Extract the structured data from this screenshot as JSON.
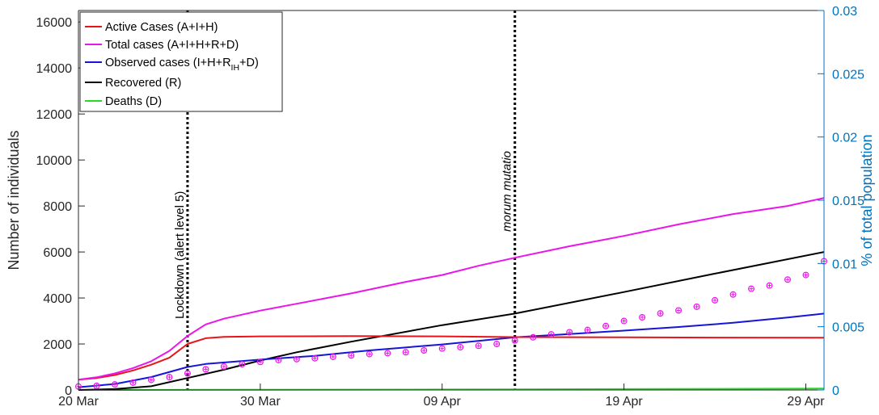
{
  "chart_data": {
    "type": "line",
    "x_ticks": [
      "20 Mar",
      "30 Mar",
      "09 Apr",
      "19 Apr",
      "29 Apr"
    ],
    "xlim": [
      "2020-03-20",
      "2020-04-30"
    ],
    "y_left": {
      "label": "Number of individuals",
      "ylim": [
        0,
        16500
      ],
      "ticks": [
        0,
        2000,
        4000,
        6000,
        8000,
        10000,
        12000,
        14000,
        16000
      ]
    },
    "y_right": {
      "label": "% of total population",
      "ylim": [
        0,
        0.03
      ],
      "ticks": [
        "0",
        "0.005",
        "0.01",
        "0.015",
        "0.02",
        "0.025",
        "0.03"
      ],
      "color": "#0072bd"
    },
    "legend": {
      "placement": "top-left",
      "entries": [
        {
          "id": "active",
          "text": "Active Cases (A+I+H)",
          "color": "#e8141c"
        },
        {
          "id": "total",
          "text": "Total cases (A+I+H+R+D)",
          "color": "#ea15ea"
        },
        {
          "id": "observed",
          "text": "Observed cases (I+H+R",
          "sub": "IH",
          "after": "+D)",
          "color": "#1515d9"
        },
        {
          "id": "recovered",
          "text": "Recovered (R)",
          "color": "#000000"
        },
        {
          "id": "deaths",
          "text": "Deaths (D)",
          "color": "#22dd22"
        }
      ]
    },
    "annotations": [
      {
        "date": "2020-03-26",
        "text": "Lockdown (alert level 5)"
      },
      {
        "date": "2020-04-13",
        "text": "morum mutatio"
      }
    ],
    "series": [
      {
        "name": "Active Cases (A+I+H)",
        "color": "#e8141c",
        "points": [
          [
            "2020-03-20",
            450
          ],
          [
            "2020-03-21",
            520
          ],
          [
            "2020-03-22",
            650
          ],
          [
            "2020-03-23",
            850
          ],
          [
            "2020-03-24",
            1100
          ],
          [
            "2020-03-25",
            1400
          ],
          [
            "2020-03-26",
            2000
          ],
          [
            "2020-03-27",
            2250
          ],
          [
            "2020-03-28",
            2310
          ],
          [
            "2020-03-30",
            2330
          ],
          [
            "2020-04-04",
            2340
          ],
          [
            "2020-04-09",
            2330
          ],
          [
            "2020-04-13",
            2300
          ],
          [
            "2020-04-19",
            2290
          ],
          [
            "2020-04-24",
            2280
          ],
          [
            "2020-04-30",
            2270
          ]
        ]
      },
      {
        "name": "Total cases (A+I+H+R+D)",
        "color": "#ea15ea",
        "points": [
          [
            "2020-03-20",
            450
          ],
          [
            "2020-03-21",
            550
          ],
          [
            "2020-03-22",
            720
          ],
          [
            "2020-03-23",
            950
          ],
          [
            "2020-03-24",
            1250
          ],
          [
            "2020-03-25",
            1700
          ],
          [
            "2020-03-26",
            2350
          ],
          [
            "2020-03-27",
            2850
          ],
          [
            "2020-03-28",
            3100
          ],
          [
            "2020-03-30",
            3450
          ],
          [
            "2020-04-01",
            3750
          ],
          [
            "2020-04-04",
            4200
          ],
          [
            "2020-04-07",
            4700
          ],
          [
            "2020-04-09",
            5000
          ],
          [
            "2020-04-11",
            5400
          ],
          [
            "2020-04-13",
            5750
          ],
          [
            "2020-04-16",
            6250
          ],
          [
            "2020-04-19",
            6700
          ],
          [
            "2020-04-22",
            7200
          ],
          [
            "2020-04-25",
            7650
          ],
          [
            "2020-04-28",
            8000
          ],
          [
            "2020-04-30",
            8350
          ]
        ]
      },
      {
        "name": "Observed cases",
        "color": "#1515d9",
        "points": [
          [
            "2020-03-20",
            120
          ],
          [
            "2020-03-22",
            260
          ],
          [
            "2020-03-24",
            560
          ],
          [
            "2020-03-26",
            1000
          ],
          [
            "2020-03-27",
            1130
          ],
          [
            "2020-03-30",
            1320
          ],
          [
            "2020-04-02",
            1480
          ],
          [
            "2020-04-05",
            1720
          ],
          [
            "2020-04-09",
            1980
          ],
          [
            "2020-04-13",
            2290
          ],
          [
            "2020-04-16",
            2430
          ],
          [
            "2020-04-19",
            2580
          ],
          [
            "2020-04-22",
            2740
          ],
          [
            "2020-04-25",
            2920
          ],
          [
            "2020-04-28",
            3150
          ],
          [
            "2020-04-30",
            3320
          ]
        ]
      },
      {
        "name": "Recovered (R)",
        "color": "#000000",
        "points": [
          [
            "2020-03-20",
            0
          ],
          [
            "2020-03-22",
            40
          ],
          [
            "2020-03-24",
            160
          ],
          [
            "2020-03-26",
            520
          ],
          [
            "2020-03-28",
            880
          ],
          [
            "2020-03-30",
            1280
          ],
          [
            "2020-04-01",
            1640
          ],
          [
            "2020-04-04",
            2100
          ],
          [
            "2020-04-09",
            2820
          ],
          [
            "2020-04-13",
            3320
          ],
          [
            "2020-04-19",
            4260
          ],
          [
            "2020-04-24",
            5060
          ],
          [
            "2020-04-30",
            6000
          ]
        ]
      },
      {
        "name": "Deaths (D)",
        "color": "#22dd22",
        "points": [
          [
            "2020-03-20",
            0
          ],
          [
            "2020-04-09",
            20
          ],
          [
            "2020-04-30",
            60
          ]
        ]
      }
    ],
    "observed_points": {
      "color": "#ea15ea",
      "points": [
        [
          "2020-03-20",
          150
        ],
        [
          "2020-03-21",
          180
        ],
        [
          "2020-03-22",
          240
        ],
        [
          "2020-03-23",
          320
        ],
        [
          "2020-03-24",
          440
        ],
        [
          "2020-03-25",
          560
        ],
        [
          "2020-03-26",
          720
        ],
        [
          "2020-03-27",
          900
        ],
        [
          "2020-03-28",
          1020
        ],
        [
          "2020-03-29",
          1120
        ],
        [
          "2020-03-30",
          1220
        ],
        [
          "2020-03-31",
          1300
        ],
        [
          "2020-04-01",
          1340
        ],
        [
          "2020-04-02",
          1380
        ],
        [
          "2020-04-03",
          1440
        ],
        [
          "2020-04-04",
          1500
        ],
        [
          "2020-04-05",
          1560
        ],
        [
          "2020-04-06",
          1600
        ],
        [
          "2020-04-07",
          1640
        ],
        [
          "2020-04-08",
          1720
        ],
        [
          "2020-04-09",
          1800
        ],
        [
          "2020-04-10",
          1860
        ],
        [
          "2020-04-11",
          1920
        ],
        [
          "2020-04-12",
          2000
        ],
        [
          "2020-04-13",
          2150
        ],
        [
          "2020-04-14",
          2290
        ],
        [
          "2020-04-15",
          2420
        ],
        [
          "2020-04-16",
          2510
        ],
        [
          "2020-04-17",
          2610
        ],
        [
          "2020-04-18",
          2780
        ],
        [
          "2020-04-19",
          3000
        ],
        [
          "2020-04-20",
          3160
        ],
        [
          "2020-04-21",
          3330
        ],
        [
          "2020-04-22",
          3460
        ],
        [
          "2020-04-23",
          3620
        ],
        [
          "2020-04-24",
          3900
        ],
        [
          "2020-04-25",
          4150
        ],
        [
          "2020-04-26",
          4400
        ],
        [
          "2020-04-27",
          4540
        ],
        [
          "2020-04-28",
          4800
        ],
        [
          "2020-04-29",
          5000
        ],
        [
          "2020-04-30",
          5600
        ]
      ]
    },
    "grid": false
  }
}
